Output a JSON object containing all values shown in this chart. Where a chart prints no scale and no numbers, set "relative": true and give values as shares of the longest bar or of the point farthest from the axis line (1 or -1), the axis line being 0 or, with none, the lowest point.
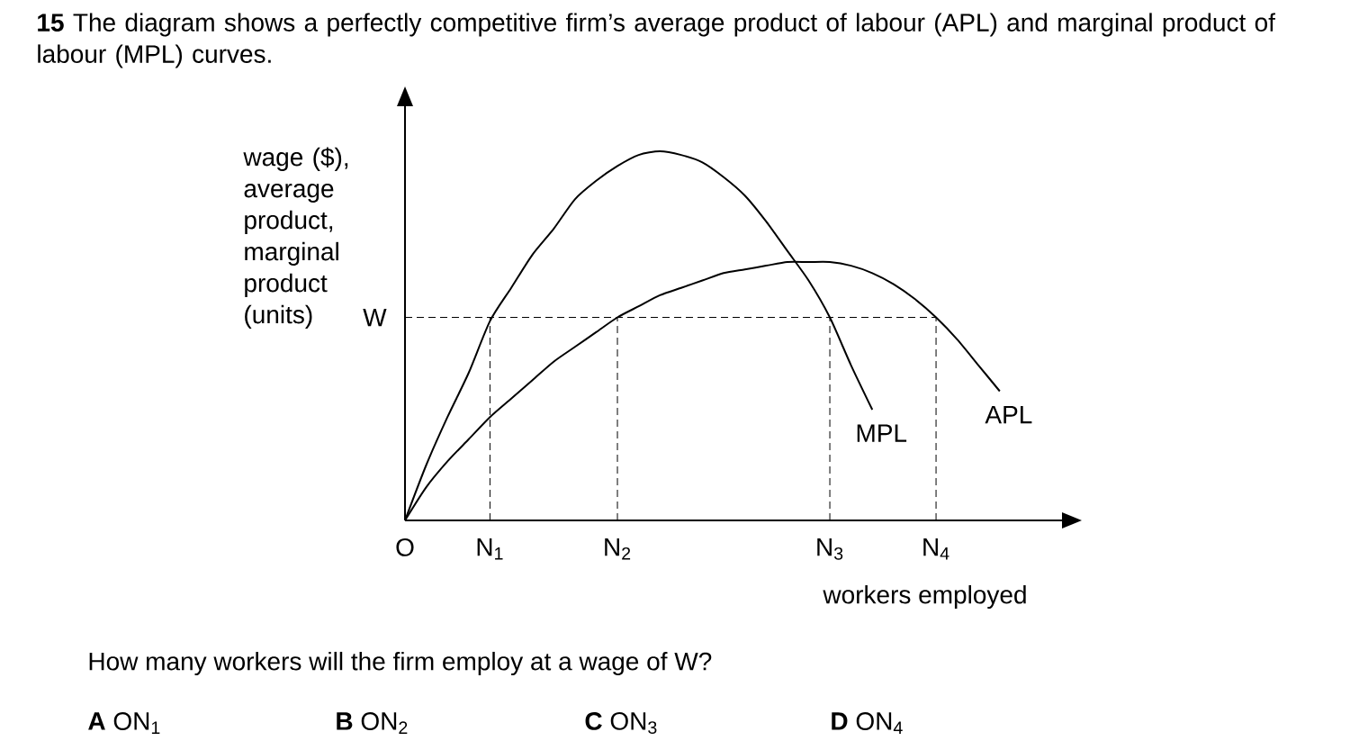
{
  "chart_data": {
    "type": "line",
    "title": "**15** The diagram shows a perfectly competitive firm’s average product of labour (APL) and marginal product of labour (MPL) curves.",
    "xlabel": "workers employed",
    "ylabel": "wage ($), average product, marginal product (units)",
    "relative": true,
    "categories": [
      "O",
      null,
      null,
      null,
      "N$_{1}$",
      null,
      null,
      null,
      null,
      null,
      "N$_{2}$",
      null,
      null,
      null,
      null,
      null,
      null,
      null,
      null,
      null,
      "N$_{3}$",
      null,
      null,
      null,
      null,
      "N$_{4}$",
      null,
      null,
      null,
      null,
      null
    ],
    "series": [
      {
        "name": "MPL",
        "color": "#000000",
        "values": [
          0,
          0.15,
          0.28,
          0.4,
          0.54,
          0.63,
          0.72,
          0.79,
          0.87,
          0.92,
          0.96,
          0.99,
          1,
          0.99,
          0.97,
          0.93,
          0.88,
          0.81,
          0.73,
          0.65,
          0.55,
          0.42,
          0.3,
          null,
          null,
          null,
          null,
          null,
          null,
          null,
          null
        ]
      },
      {
        "name": "APL",
        "color": "#000000",
        "values": [
          0,
          0.09,
          0.16,
          0.22,
          0.28,
          0.33,
          0.38,
          0.43,
          0.47,
          0.51,
          0.55,
          0.58,
          0.61,
          0.63,
          0.65,
          0.67,
          0.68,
          0.69,
          0.7,
          0.7,
          0.7,
          0.69,
          0.67,
          0.64,
          0.6,
          0.55,
          0.49,
          0.42,
          0.35,
          null,
          null
        ]
      }
    ],
    "ref_lines": [
      {
        "axis": "y",
        "value": 0.55,
        "label": "W",
        "line_style": "dashed"
      },
      {
        "axis": "x",
        "value": "N$_{1}$",
        "line_style": "dashed"
      },
      {
        "axis": "x",
        "value": "N$_{2}$",
        "line_style": "dashed"
      },
      {
        "axis": "x",
        "value": "N$_{3}$",
        "line_style": "dashed"
      },
      {
        "axis": "x",
        "value": "N$_{4}$",
        "line_style": "dashed"
      }
    ],
    "annotations": [
      "How many workers will the firm employ at a wage of W?",
      "**A**  ON$_{1}$",
      "**B**  ON$_{2}$",
      "**C**  ON$_{3}$",
      "**D**  ON$_{4}$"
    ]
  }
}
